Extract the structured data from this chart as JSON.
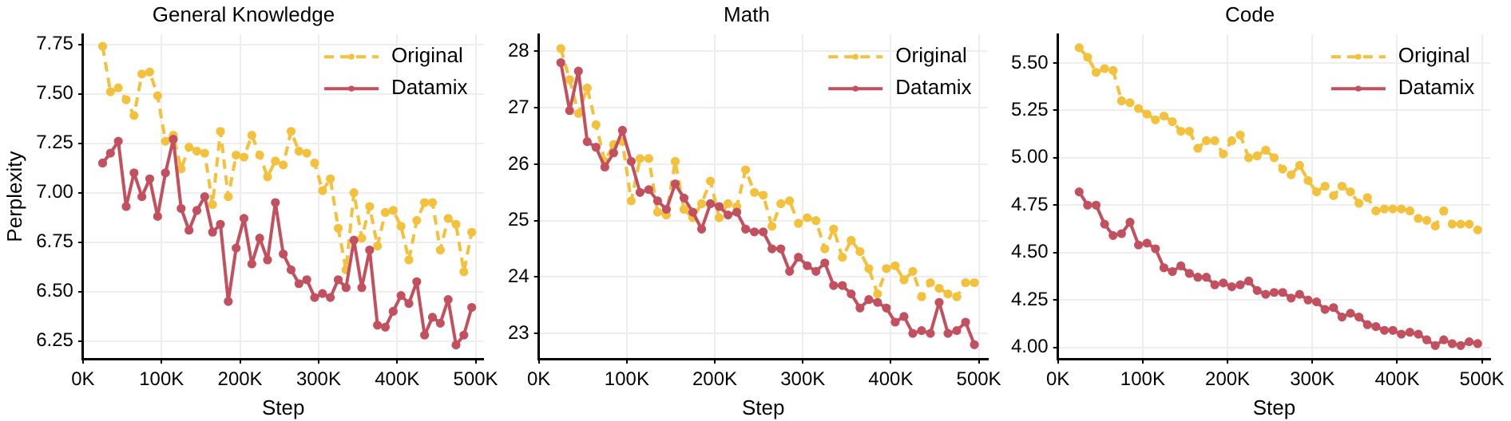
{
  "chart_data": [
    {
      "type": "line",
      "title": "General Knowledge",
      "xlabel": "Step",
      "ylabel": "Perplexity",
      "x": [
        25000,
        35000,
        45000,
        55000,
        65000,
        75000,
        85000,
        95000,
        105000,
        115000,
        125000,
        135000,
        145000,
        155000,
        165000,
        175000,
        185000,
        195000,
        205000,
        215000,
        225000,
        235000,
        245000,
        255000,
        265000,
        275000,
        285000,
        295000,
        305000,
        315000,
        325000,
        335000,
        345000,
        355000,
        365000,
        375000,
        385000,
        395000,
        405000,
        415000,
        425000,
        435000,
        445000,
        455000,
        465000,
        475000,
        485000,
        495000
      ],
      "series": [
        {
          "name": "Original",
          "color": "#f4c13d",
          "line_style": "dashed",
          "values": [
            7.74,
            7.51,
            7.53,
            7.47,
            7.39,
            7.6,
            7.61,
            7.49,
            7.26,
            7.29,
            7.12,
            7.23,
            7.21,
            7.2,
            6.94,
            7.31,
            6.98,
            7.19,
            7.18,
            7.29,
            7.19,
            7.08,
            7.16,
            7.14,
            7.31,
            7.21,
            7.2,
            7.15,
            7.01,
            7.07,
            6.82,
            6.61,
            7.0,
            6.77,
            6.93,
            6.73,
            6.9,
            6.91,
            6.83,
            6.66,
            6.86,
            6.95,
            6.95,
            6.71,
            6.87,
            6.84,
            6.6,
            6.8
          ]
        },
        {
          "name": "Datamix",
          "color": "#c3505f",
          "line_style": "solid",
          "values": [
            7.15,
            7.2,
            7.26,
            6.93,
            7.1,
            6.98,
            7.07,
            6.88,
            7.1,
            7.27,
            6.92,
            6.81,
            6.91,
            6.98,
            6.8,
            6.84,
            6.45,
            6.72,
            6.87,
            6.64,
            6.77,
            6.66,
            6.95,
            6.69,
            6.61,
            6.54,
            6.56,
            6.47,
            6.49,
            6.47,
            6.56,
            6.52,
            6.76,
            6.52,
            6.71,
            6.33,
            6.32,
            6.4,
            6.48,
            6.44,
            6.55,
            6.28,
            6.37,
            6.34,
            6.46,
            6.23,
            6.28,
            6.42
          ]
        }
      ],
      "xlim": [
        0,
        510000
      ],
      "xticks": [
        {
          "value": 0,
          "label": "0K"
        },
        {
          "value": 100000,
          "label": "100K"
        },
        {
          "value": 200000,
          "label": "200K"
        },
        {
          "value": 300000,
          "label": "300K"
        },
        {
          "value": 400000,
          "label": "400K"
        },
        {
          "value": 500000,
          "label": "500K"
        }
      ],
      "ylim": [
        6.16,
        7.8
      ],
      "yticks": [
        {
          "value": 6.25,
          "label": "6.25"
        },
        {
          "value": 6.5,
          "label": "6.50"
        },
        {
          "value": 6.75,
          "label": "6.75"
        },
        {
          "value": 7,
          "label": "7.00"
        },
        {
          "value": 7.25,
          "label": "7.25"
        },
        {
          "value": 7.5,
          "label": "7.50"
        },
        {
          "value": 7.75,
          "label": "7.75"
        }
      ],
      "grid": true,
      "legend": "top right",
      "marker": "circle"
    },
    {
      "type": "line",
      "title": "Math",
      "xlabel": "Step",
      "x": [
        25000,
        35000,
        45000,
        55000,
        65000,
        75000,
        85000,
        95000,
        105000,
        115000,
        125000,
        135000,
        145000,
        155000,
        165000,
        175000,
        185000,
        195000,
        205000,
        215000,
        225000,
        235000,
        245000,
        255000,
        265000,
        275000,
        285000,
        295000,
        305000,
        315000,
        325000,
        335000,
        345000,
        355000,
        365000,
        375000,
        385000,
        395000,
        405000,
        415000,
        425000,
        435000,
        445000,
        455000,
        465000,
        475000,
        485000,
        495000
      ],
      "series": [
        {
          "name": "Original",
          "color": "#f4c13d",
          "line_style": "dashed",
          "values": [
            28.05,
            27.5,
            26.9,
            27.35,
            26.7,
            26.05,
            26.35,
            26.4,
            25.35,
            26.1,
            26.1,
            25.15,
            25.1,
            26.05,
            25.2,
            25.05,
            25.3,
            25.7,
            25.05,
            25.3,
            25.25,
            25.9,
            25.5,
            25.45,
            24.9,
            25.3,
            25.35,
            24.95,
            25.05,
            25.0,
            24.5,
            24.85,
            24.35,
            24.65,
            24.45,
            24.15,
            23.7,
            24.15,
            24.2,
            23.95,
            24.1,
            23.65,
            23.9,
            23.8,
            23.7,
            23.65,
            23.9,
            23.9
          ]
        },
        {
          "name": "Datamix",
          "color": "#c3505f",
          "line_style": "solid",
          "values": [
            27.8,
            26.95,
            27.65,
            26.4,
            26.3,
            25.95,
            26.2,
            26.6,
            26.05,
            25.5,
            25.55,
            25.35,
            25.2,
            25.65,
            25.4,
            25.15,
            24.85,
            25.3,
            25.25,
            25.1,
            25.15,
            24.85,
            24.8,
            24.8,
            24.5,
            24.5,
            24.1,
            24.35,
            24.2,
            24.1,
            24.25,
            23.85,
            23.85,
            23.7,
            23.45,
            23.6,
            23.55,
            23.45,
            23.2,
            23.3,
            23.0,
            23.05,
            23.0,
            23.55,
            23.0,
            23.05,
            23.2,
            22.8
          ]
        }
      ],
      "xlim": [
        0,
        510000
      ],
      "xticks": [
        {
          "value": 0,
          "label": "0K"
        },
        {
          "value": 100000,
          "label": "100K"
        },
        {
          "value": 200000,
          "label": "200K"
        },
        {
          "value": 300000,
          "label": "300K"
        },
        {
          "value": 400000,
          "label": "400K"
        },
        {
          "value": 500000,
          "label": "500K"
        }
      ],
      "ylim": [
        22.55,
        28.3
      ],
      "yticks": [
        23,
        24,
        25,
        26,
        27,
        28
      ],
      "grid": true,
      "legend": "top right",
      "marker": "circle"
    },
    {
      "type": "line",
      "title": "Code",
      "xlabel": "Step",
      "x": [
        25000,
        35000,
        45000,
        55000,
        65000,
        75000,
        85000,
        95000,
        105000,
        115000,
        125000,
        135000,
        145000,
        155000,
        165000,
        175000,
        185000,
        195000,
        205000,
        215000,
        225000,
        235000,
        245000,
        255000,
        265000,
        275000,
        285000,
        295000,
        305000,
        315000,
        325000,
        335000,
        345000,
        355000,
        365000,
        375000,
        385000,
        395000,
        405000,
        415000,
        425000,
        435000,
        445000,
        455000,
        465000,
        475000,
        485000,
        495000
      ],
      "series": [
        {
          "name": "Original",
          "color": "#f4c13d",
          "line_style": "dashed",
          "values": [
            5.58,
            5.53,
            5.45,
            5.47,
            5.46,
            5.3,
            5.29,
            5.26,
            5.23,
            5.2,
            5.22,
            5.19,
            5.14,
            5.14,
            5.05,
            5.09,
            5.09,
            5.02,
            5.09,
            5.12,
            5.0,
            5.01,
            5.04,
            5.0,
            4.94,
            4.91,
            4.96,
            4.88,
            4.82,
            4.85,
            4.8,
            4.85,
            4.82,
            4.76,
            4.79,
            4.72,
            4.73,
            4.73,
            4.73,
            4.72,
            4.68,
            4.67,
            4.64,
            4.72,
            4.65,
            4.65,
            4.65,
            4.62
          ]
        },
        {
          "name": "Datamix",
          "color": "#c3505f",
          "line_style": "solid",
          "values": [
            4.82,
            4.75,
            4.75,
            4.65,
            4.59,
            4.6,
            4.66,
            4.54,
            4.55,
            4.52,
            4.42,
            4.4,
            4.43,
            4.39,
            4.37,
            4.37,
            4.33,
            4.34,
            4.32,
            4.33,
            4.35,
            4.3,
            4.28,
            4.29,
            4.29,
            4.26,
            4.28,
            4.25,
            4.24,
            4.2,
            4.21,
            4.16,
            4.18,
            4.16,
            4.12,
            4.11,
            4.09,
            4.09,
            4.07,
            4.08,
            4.07,
            4.04,
            4.01,
            4.04,
            4.02,
            4.01,
            4.03,
            4.02
          ]
        }
      ],
      "xlim": [
        0,
        510000
      ],
      "xticks": [
        {
          "value": 0,
          "label": "0K"
        },
        {
          "value": 100000,
          "label": "100K"
        },
        {
          "value": 200000,
          "label": "200K"
        },
        {
          "value": 300000,
          "label": "300K"
        },
        {
          "value": 400000,
          "label": "400K"
        },
        {
          "value": 500000,
          "label": "500K"
        }
      ],
      "ylim": [
        3.94,
        5.65
      ],
      "yticks": [
        {
          "value": 4,
          "label": "4.00"
        },
        {
          "value": 4.25,
          "label": "4.25"
        },
        {
          "value": 4.5,
          "label": "4.50"
        },
        {
          "value": 4.75,
          "label": "4.75"
        },
        {
          "value": 5,
          "label": "5.00"
        },
        {
          "value": 5.25,
          "label": "5.25"
        },
        {
          "value": 5.5,
          "label": "5.50"
        }
      ],
      "grid": true,
      "legend": "top right",
      "marker": "circle"
    }
  ]
}
